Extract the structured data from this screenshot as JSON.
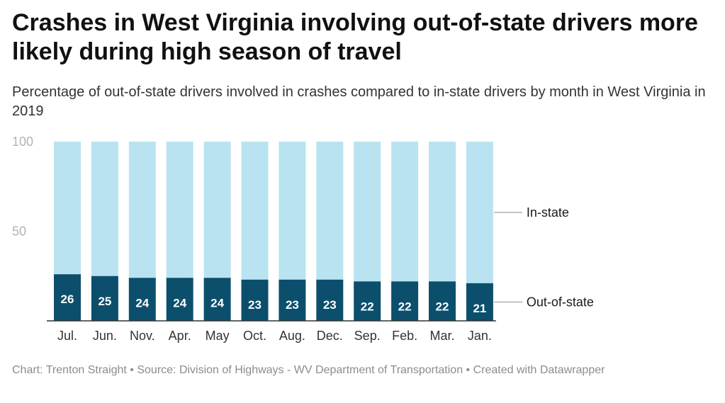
{
  "header": {
    "title": "Crashes in West Virginia involving out-of-state drivers more likely during high season of travel",
    "subtitle": "Percentage of out-of-state drivers involved in crashes compared to in-state drivers by month in West Virginia in 2019"
  },
  "footer": {
    "text": "Chart: Trenton Straight • Source: Division of Highways - WV Department of Transportation • Created with Datawrapper"
  },
  "chart_data": {
    "type": "bar",
    "stacked": true,
    "categories": [
      "Jul.",
      "Jun.",
      "Nov.",
      "Apr.",
      "May",
      "Oct.",
      "Aug.",
      "Dec.",
      "Sep.",
      "Feb.",
      "Mar.",
      "Jan."
    ],
    "series": [
      {
        "name": "Out-of-state",
        "color": "#0b4f6c",
        "values": [
          26,
          25,
          24,
          24,
          24,
          23,
          23,
          23,
          22,
          22,
          22,
          21
        ]
      },
      {
        "name": "In-state",
        "color": "#b9e3f0",
        "values": [
          74,
          75,
          76,
          76,
          76,
          77,
          77,
          77,
          78,
          78,
          78,
          79
        ]
      }
    ],
    "ylim": [
      0,
      100
    ],
    "yticks": [
      "100",
      "50"
    ],
    "legend_labels": [
      "In-state",
      "Out-of-state"
    ],
    "title": "Crashes in West Virginia involving out-of-state drivers more likely during high season of travel",
    "xlabel": "",
    "ylabel": ""
  }
}
